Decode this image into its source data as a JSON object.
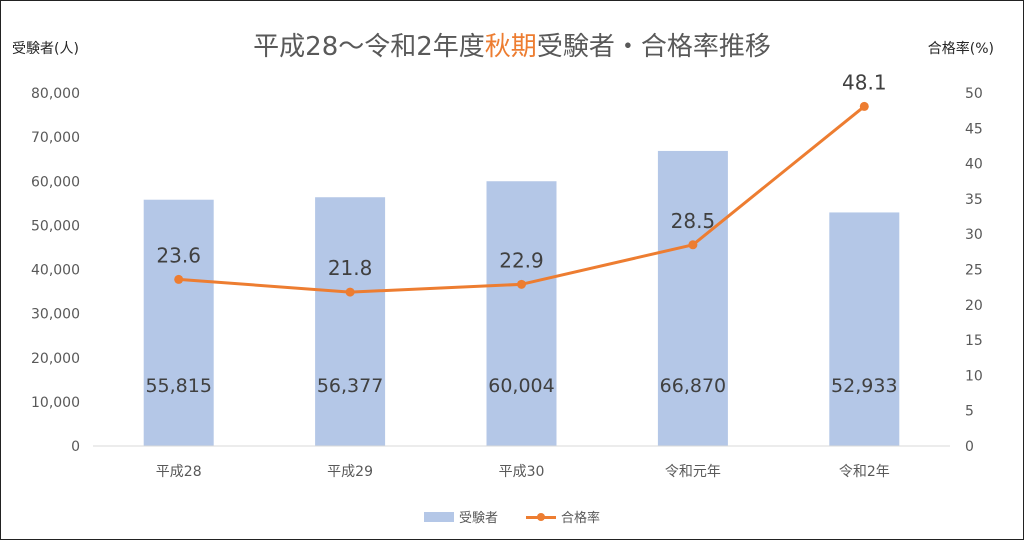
{
  "title": {
    "pre": "平成28～令和2年度",
    "highlight": "秋期",
    "post": "受験者・合格率推移",
    "highlight_color": "#ED7D31",
    "color": "#595959"
  },
  "chart_data": {
    "type": "bar",
    "categories": [
      "平成28",
      "平成29",
      "平成30",
      "令和元年",
      "令和2年"
    ],
    "series": [
      {
        "name": "受験者",
        "type": "bar",
        "axis": "left",
        "values": [
          55815,
          56377,
          60004,
          66870,
          52933
        ],
        "labels": [
          "55,815",
          "56,377",
          "60,004",
          "66,870",
          "52,933"
        ],
        "color": "#B4C7E7"
      },
      {
        "name": "合格率",
        "type": "line",
        "axis": "right",
        "values": [
          23.6,
          21.8,
          22.9,
          28.5,
          48.1
        ],
        "labels": [
          "23.6",
          "21.8",
          "22.9",
          "28.5",
          "48.1"
        ],
        "color": "#ED7D31"
      }
    ],
    "ylabel_left": "受験者(人)",
    "ylabel_right": "合格率(%)",
    "ylim_left": [
      0,
      80000
    ],
    "ylim_right": [
      0,
      50
    ],
    "left_ticks": [
      "0",
      "10,000",
      "20,000",
      "30,000",
      "40,000",
      "50,000",
      "60,000",
      "70,000",
      "80,000"
    ],
    "right_ticks": [
      "0",
      "5",
      "10",
      "15",
      "20",
      "25",
      "30",
      "35",
      "40",
      "45",
      "50"
    ],
    "grid": false,
    "legend_position": "bottom"
  }
}
